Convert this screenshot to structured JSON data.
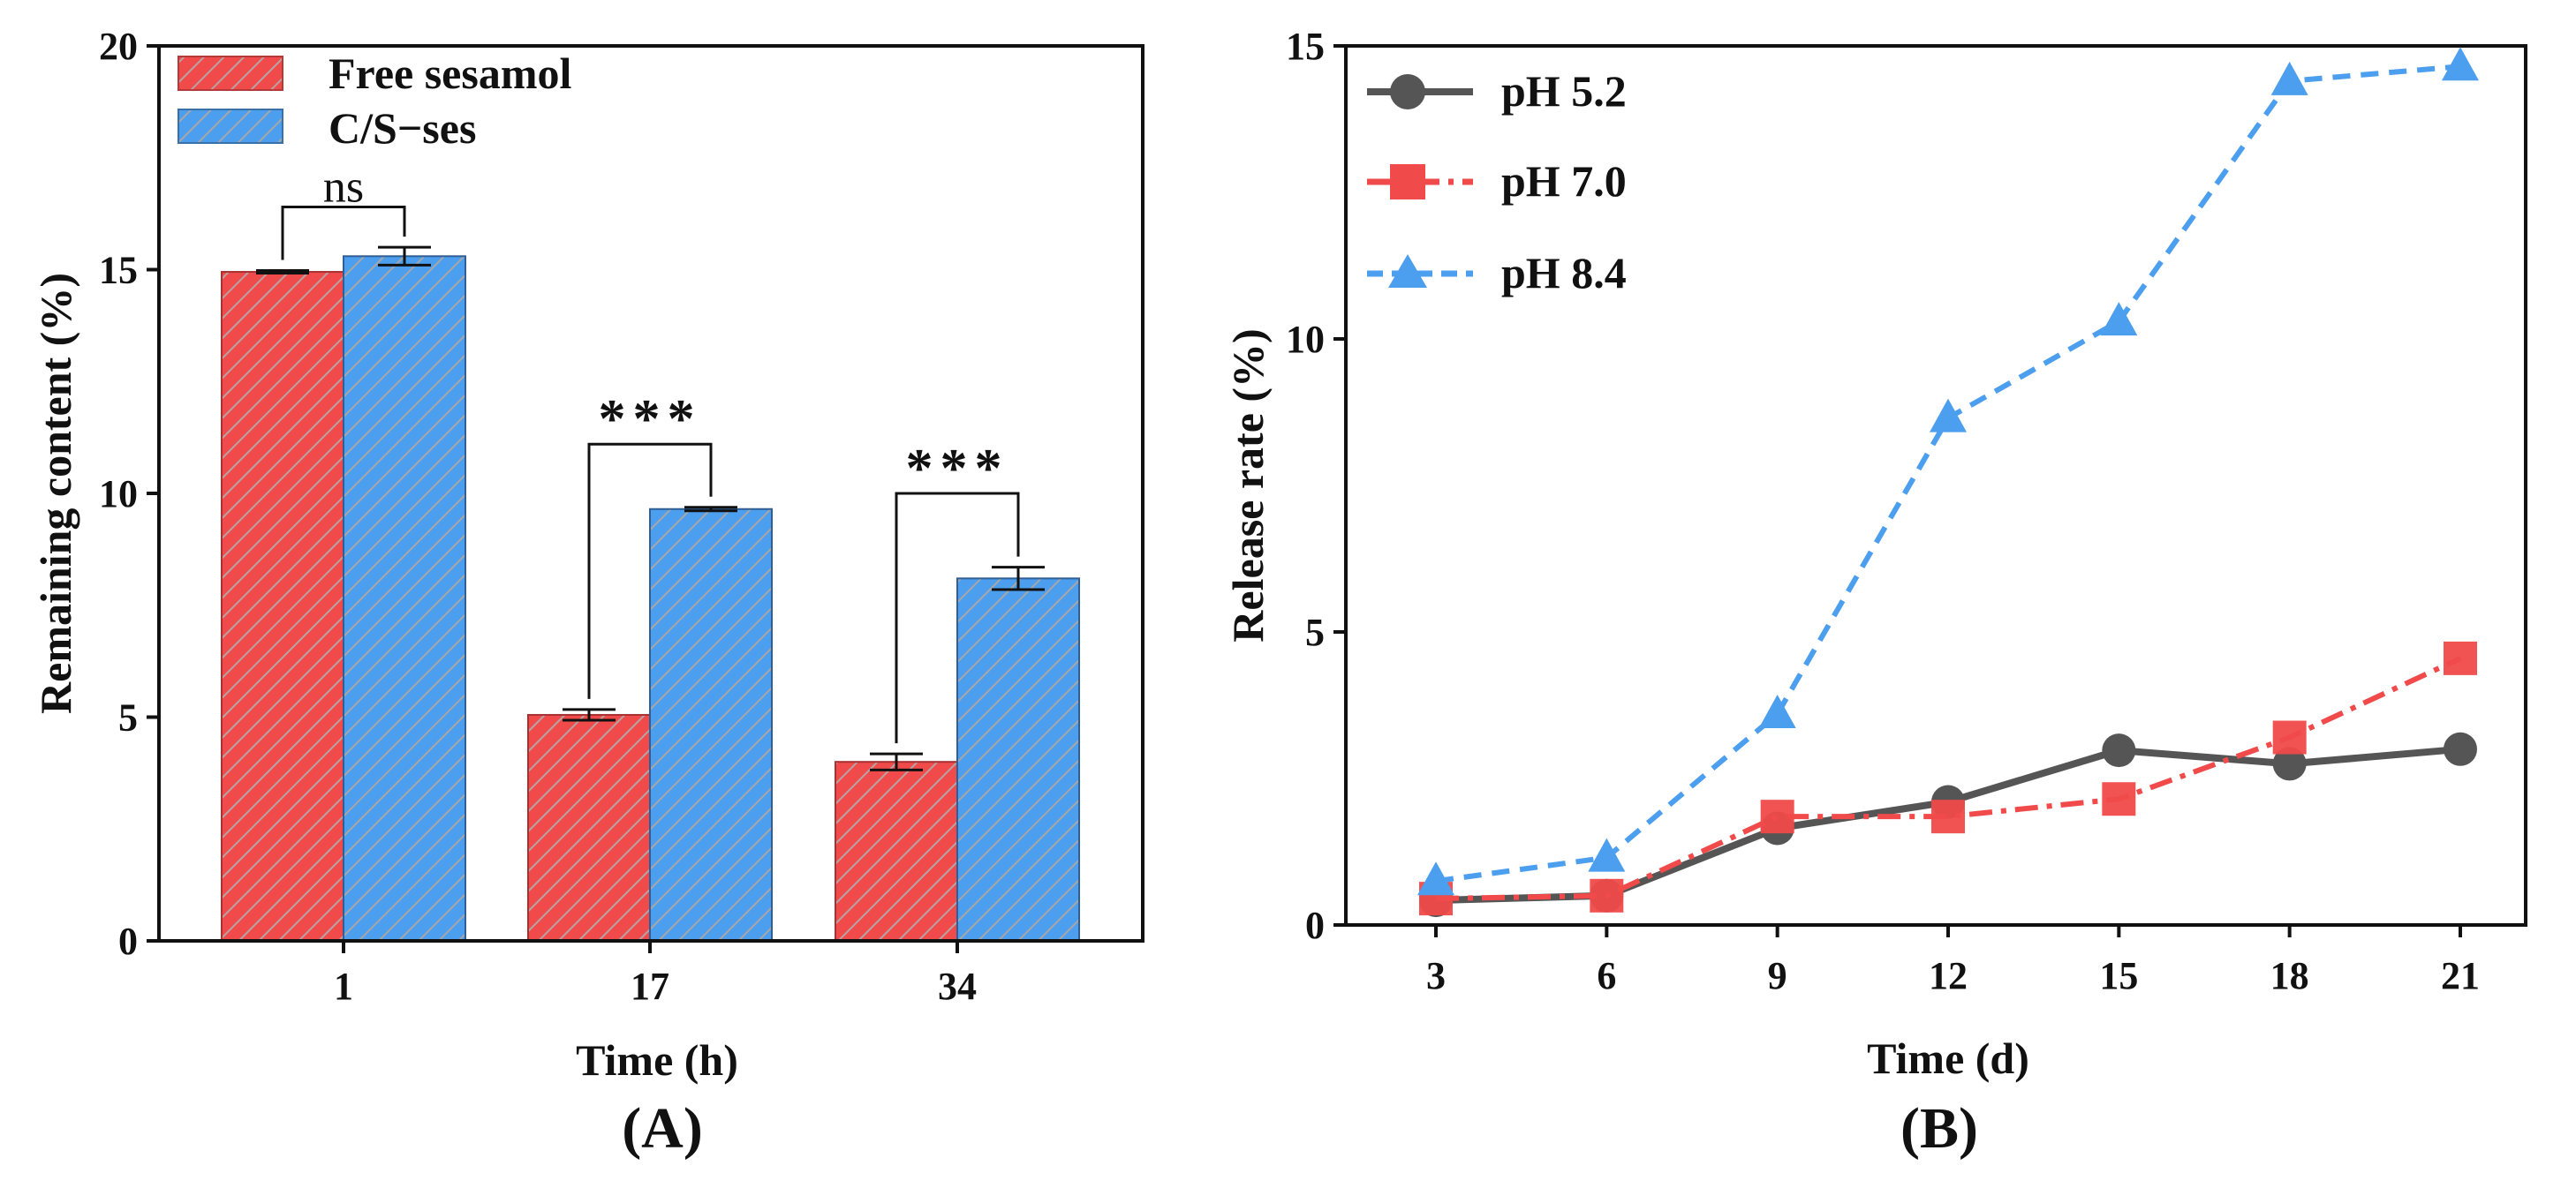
{
  "colors": {
    "red": "#f04a4a",
    "blue": "#4c9eee",
    "gray": "#555555",
    "axis": "#111111"
  },
  "chart_data": [
    {
      "type": "bar",
      "panel_label": "(A)",
      "xlabel": "Time (h)",
      "ylabel": "Remaining content (%)",
      "categories": [
        "1",
        "17",
        "34"
      ],
      "ylim": [
        0,
        20
      ],
      "yticks": [
        "0",
        "5",
        "10",
        "15",
        "20"
      ],
      "series": [
        {
          "name": "Free sesamol",
          "values": [
            14.95,
            5.05,
            4.0
          ],
          "errors": [
            0.03,
            0.12,
            0.18
          ],
          "color": "red"
        },
        {
          "name": "C/S−ses",
          "values": [
            15.3,
            9.65,
            8.1
          ],
          "errors": [
            0.2,
            0.04,
            0.25
          ],
          "color": "blue"
        }
      ],
      "significance": [
        {
          "category": "1",
          "label": "ns",
          "bracket_level": 16.4
        },
        {
          "category": "17",
          "label": "***",
          "bracket_level": 11.1
        },
        {
          "category": "34",
          "label": "***",
          "bracket_level": 10.0
        }
      ],
      "legend_position": "top-left"
    },
    {
      "type": "line",
      "panel_label": "(B)",
      "xlabel": "Time (d)",
      "ylabel": "Release rate (%)",
      "x": [
        3,
        6,
        9,
        12,
        15,
        18,
        21
      ],
      "xticks": [
        "3",
        "6",
        "9",
        "12",
        "15",
        "18",
        "21"
      ],
      "ylim": [
        0,
        15
      ],
      "yticks": [
        "0",
        "5",
        "10",
        "15"
      ],
      "series": [
        {
          "name": "pH 5.2",
          "values": [
            0.42,
            0.5,
            1.65,
            2.1,
            2.98,
            2.75,
            3.0
          ],
          "color": "gray",
          "marker": "circle",
          "line": "solid"
        },
        {
          "name": "pH 7.0",
          "values": [
            0.45,
            0.5,
            1.85,
            1.85,
            2.15,
            3.2,
            4.55
          ],
          "color": "red",
          "marker": "square",
          "line": "dashdot"
        },
        {
          "name": "pH 8.4",
          "values": [
            0.75,
            1.15,
            3.6,
            8.65,
            10.3,
            14.4,
            14.65
          ],
          "color": "blue",
          "marker": "triangle",
          "line": "dashed"
        }
      ],
      "legend_position": "top-left"
    }
  ]
}
